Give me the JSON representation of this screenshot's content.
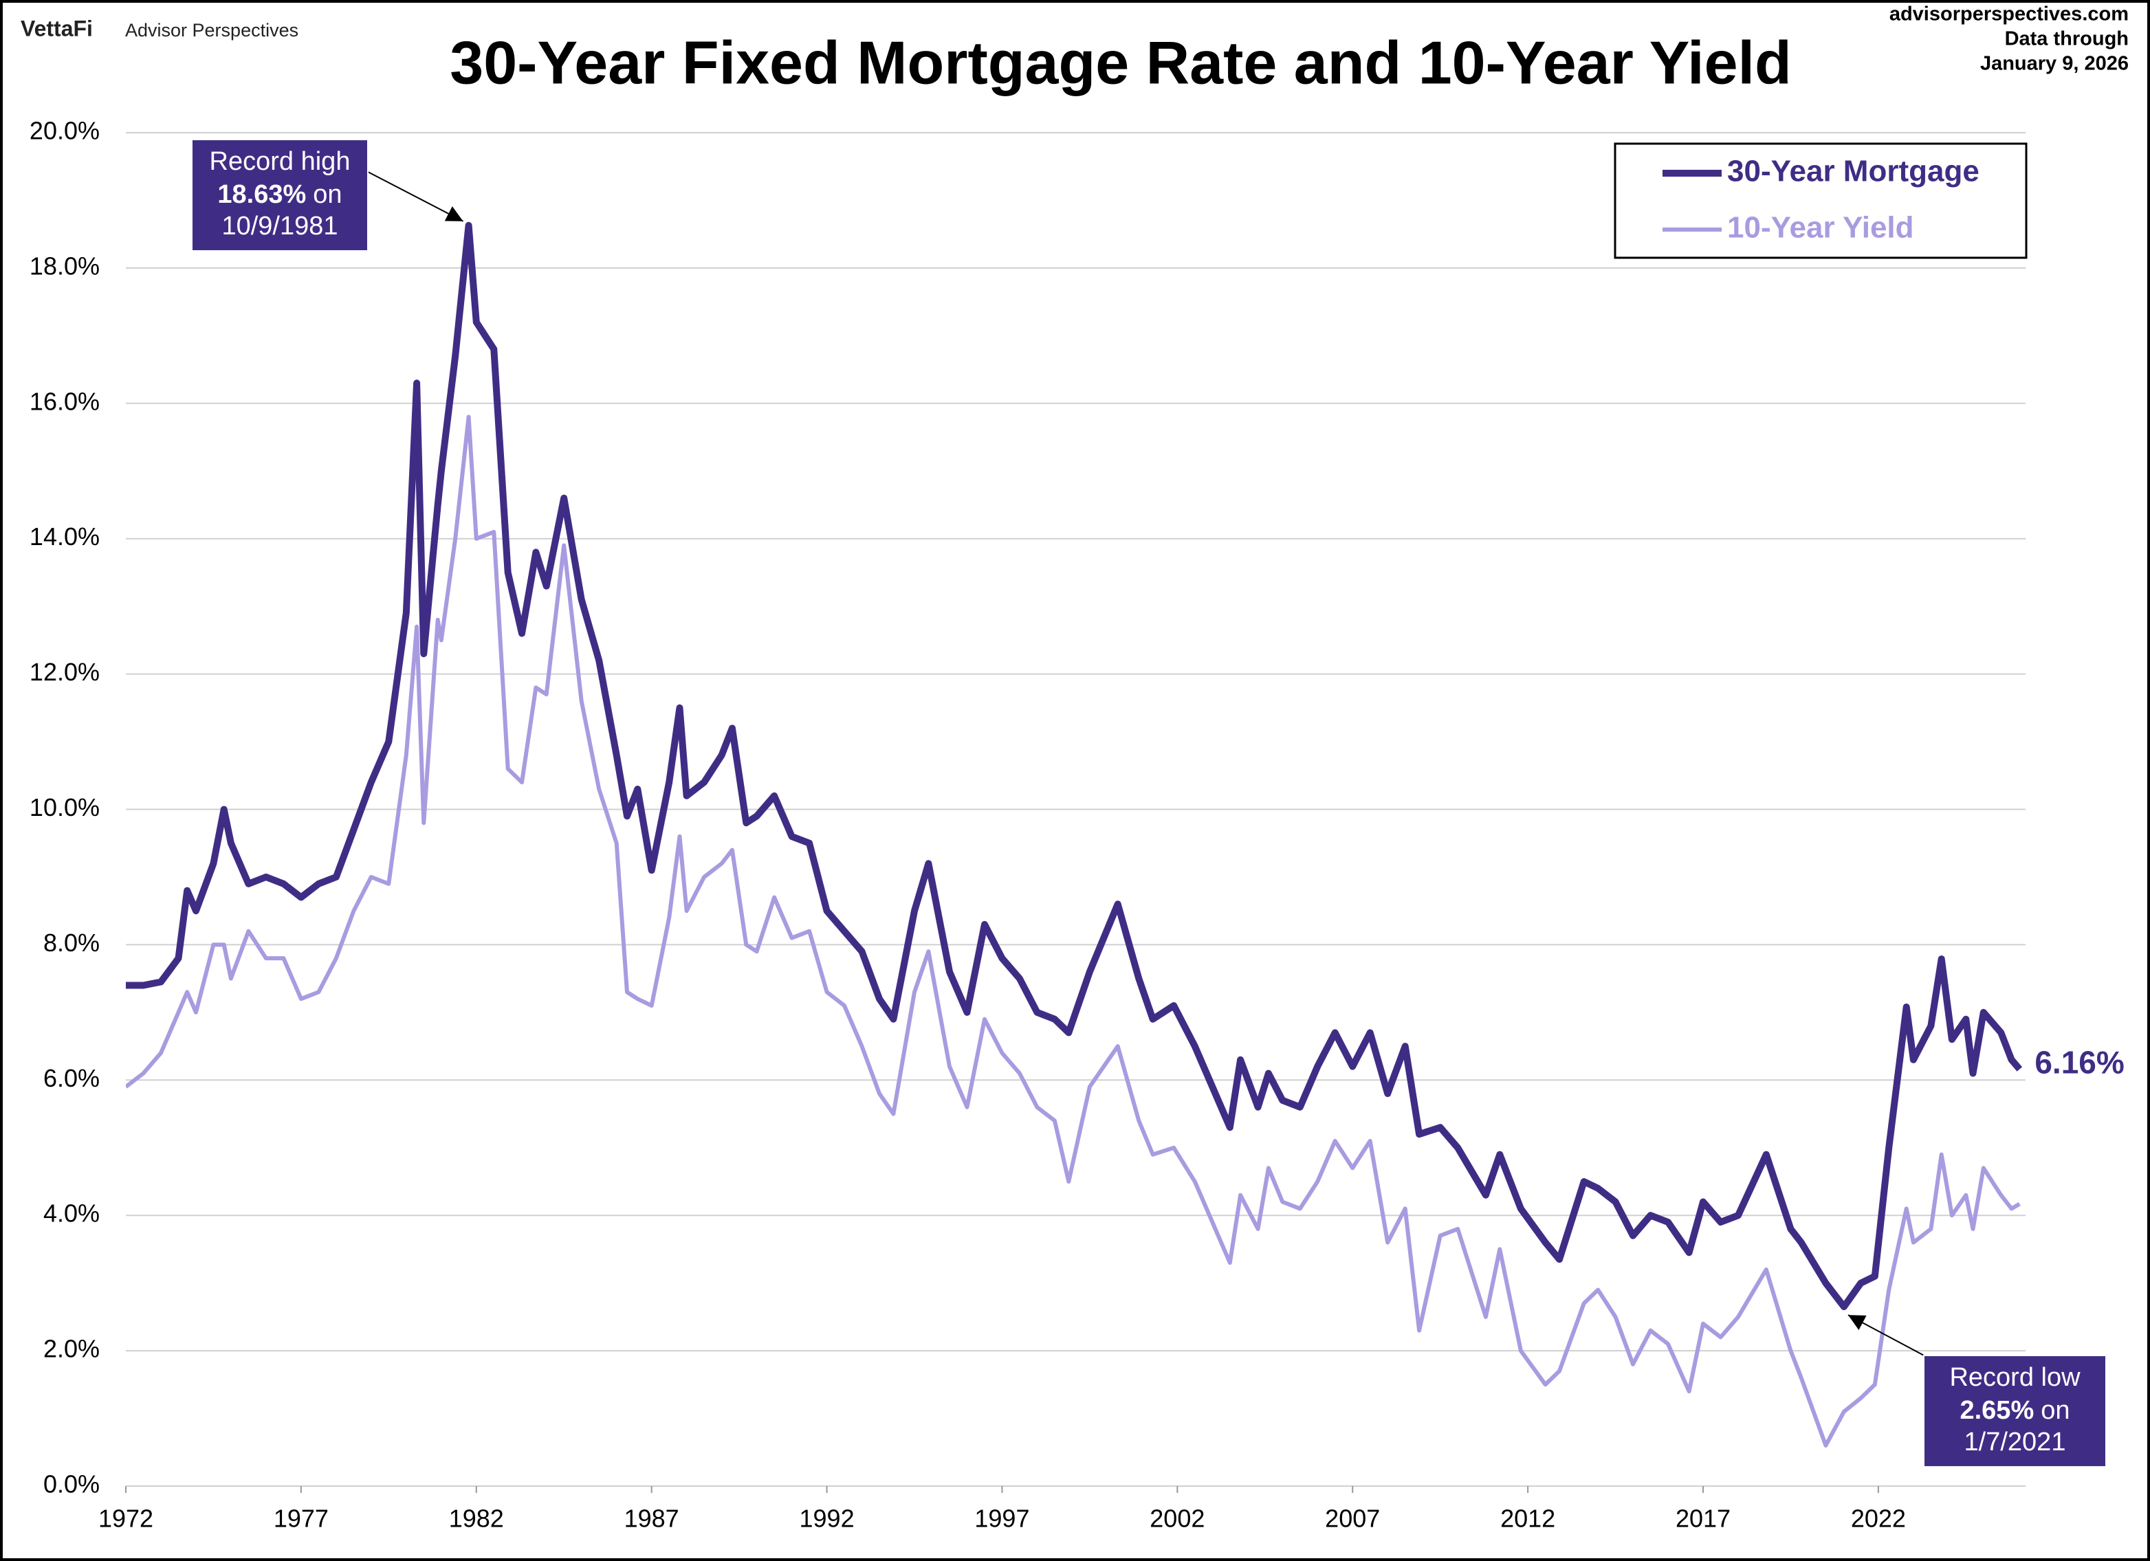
{
  "header": {
    "brand": "VettaFi",
    "publisher": "Advisor Perspectives",
    "site": "advisorperspectives.com",
    "note_line1": "Data through",
    "note_line2": "January 9, 2026"
  },
  "chart_data": {
    "type": "line",
    "title": "30-Year Fixed Mortgage Rate and 10-Year Yield",
    "x": [
      1972.0,
      1972.5,
      1973.0,
      1973.5,
      1973.75,
      1974.0,
      1974.5,
      1974.8,
      1975.0,
      1975.5,
      1976.0,
      1976.5,
      1977.0,
      1977.5,
      1978.0,
      1978.5,
      1979.0,
      1979.5,
      1980.0,
      1980.3,
      1980.5,
      1980.9,
      1981.0,
      1981.4,
      1981.78,
      1982.0,
      1982.5,
      1982.9,
      1983.3,
      1983.7,
      1984.0,
      1984.5,
      1985.0,
      1985.5,
      1986.0,
      1986.3,
      1986.6,
      1987.0,
      1987.5,
      1987.8,
      1988.0,
      1988.5,
      1989.0,
      1989.3,
      1989.7,
      1990.0,
      1990.5,
      1991.0,
      1991.5,
      1992.0,
      1992.5,
      1993.0,
      1993.5,
      1993.9,
      1994.5,
      1994.9,
      1995.5,
      1996.0,
      1996.5,
      1997.0,
      1997.5,
      1998.0,
      1998.5,
      1998.9,
      1999.5,
      2000.3,
      2000.9,
      2001.3,
      2001.9,
      2002.5,
      2003.0,
      2003.5,
      2003.8,
      2004.3,
      2004.6,
      2005.0,
      2005.5,
      2006.0,
      2006.5,
      2007.0,
      2007.5,
      2008.0,
      2008.5,
      2008.9,
      2009.5,
      2010.0,
      2010.8,
      2011.2,
      2011.8,
      2012.5,
      2012.9,
      2013.6,
      2014.0,
      2014.5,
      2015.0,
      2015.5,
      2016.0,
      2016.6,
      2017.0,
      2017.5,
      2018.0,
      2018.8,
      2019.5,
      2019.8,
      2020.5,
      2021.02,
      2021.5,
      2021.9,
      2022.3,
      2022.8,
      2023.0,
      2023.5,
      2023.8,
      2024.1,
      2024.5,
      2024.7,
      2025.0,
      2025.5,
      2025.8,
      2026.03
    ],
    "series": [
      {
        "name": "30-Year Mortgage",
        "color": "#3f2d85",
        "width": 10,
        "end_label": "6.16%",
        "values": [
          7.4,
          7.4,
          7.45,
          7.8,
          8.8,
          8.5,
          9.2,
          10.0,
          9.5,
          8.9,
          9.0,
          8.9,
          8.7,
          8.9,
          9.0,
          9.7,
          10.4,
          11.0,
          12.9,
          16.3,
          12.3,
          14.5,
          15.0,
          16.7,
          18.63,
          17.2,
          16.8,
          13.5,
          12.6,
          13.8,
          13.3,
          14.6,
          13.1,
          12.2,
          10.8,
          9.9,
          10.3,
          9.1,
          10.4,
          11.5,
          10.2,
          10.4,
          10.8,
          11.2,
          9.8,
          9.9,
          10.2,
          9.6,
          9.5,
          8.5,
          8.2,
          7.9,
          7.2,
          6.9,
          8.5,
          9.2,
          7.6,
          7.0,
          8.3,
          7.8,
          7.5,
          7.0,
          6.9,
          6.7,
          7.6,
          8.6,
          7.5,
          6.9,
          7.1,
          6.5,
          5.9,
          5.3,
          6.3,
          5.6,
          6.1,
          5.7,
          5.6,
          6.2,
          6.7,
          6.2,
          6.7,
          5.8,
          6.5,
          5.2,
          5.3,
          5.0,
          4.3,
          4.9,
          4.1,
          3.6,
          3.35,
          4.5,
          4.4,
          4.2,
          3.7,
          4.0,
          3.9,
          3.45,
          4.2,
          3.9,
          4.0,
          4.9,
          3.8,
          3.6,
          3.0,
          2.65,
          3.0,
          3.1,
          5.0,
          7.08,
          6.3,
          6.8,
          7.79,
          6.6,
          6.9,
          6.1,
          7.0,
          6.7,
          6.3,
          6.16
        ]
      },
      {
        "name": "10-Year Yield",
        "color": "#a99be0",
        "width": 6,
        "values": [
          5.9,
          6.1,
          6.4,
          7.0,
          7.3,
          7.0,
          8.0,
          8.0,
          7.5,
          8.2,
          7.8,
          7.8,
          7.2,
          7.3,
          7.8,
          8.5,
          9.0,
          8.9,
          10.8,
          12.7,
          9.8,
          12.8,
          12.5,
          14.0,
          15.8,
          14.0,
          14.1,
          10.6,
          10.4,
          11.8,
          11.7,
          13.9,
          11.6,
          10.3,
          9.5,
          7.3,
          7.2,
          7.1,
          8.4,
          9.6,
          8.5,
          9.0,
          9.2,
          9.4,
          8.0,
          7.9,
          8.7,
          8.1,
          8.2,
          7.3,
          7.1,
          6.5,
          5.8,
          5.5,
          7.3,
          7.9,
          6.2,
          5.6,
          6.9,
          6.4,
          6.1,
          5.6,
          5.4,
          4.5,
          5.9,
          6.5,
          5.4,
          4.9,
          5.0,
          4.5,
          3.9,
          3.3,
          4.3,
          3.8,
          4.7,
          4.2,
          4.1,
          4.5,
          5.1,
          4.7,
          5.1,
          3.6,
          4.1,
          2.3,
          3.7,
          3.8,
          2.5,
          3.5,
          2.0,
          1.5,
          1.7,
          2.7,
          2.9,
          2.5,
          1.8,
          2.3,
          2.1,
          1.4,
          2.4,
          2.2,
          2.5,
          3.2,
          2.0,
          1.6,
          0.6,
          1.1,
          1.3,
          1.5,
          2.9,
          4.1,
          3.6,
          3.8,
          4.9,
          4.0,
          4.3,
          3.8,
          4.7,
          4.3,
          4.1,
          4.17
        ]
      }
    ],
    "xlim": [
      1972,
      2026.2
    ],
    "xticks": [
      1972,
      1977,
      1982,
      1987,
      1992,
      1997,
      2002,
      2007,
      2012,
      2017,
      2022
    ],
    "ylim": [
      0,
      20
    ],
    "yticks": [
      {
        "value": 0,
        "label": "0.0%"
      },
      {
        "value": 2,
        "label": "2.0%"
      },
      {
        "value": 4,
        "label": "4.0%"
      },
      {
        "value": 6,
        "label": "6.0%"
      },
      {
        "value": 8,
        "label": "8.0%"
      },
      {
        "value": 10,
        "label": "10.0%"
      },
      {
        "value": 12,
        "label": "12.0%"
      },
      {
        "value": 14,
        "label": "14.0%"
      },
      {
        "value": 16,
        "label": "16.0%"
      },
      {
        "value": 18,
        "label": "18.0%"
      },
      {
        "value": 20,
        "label": "20.0%"
      }
    ],
    "grid": true,
    "legend": "upper right",
    "annotations": [
      {
        "line1": "Record high",
        "value": "18.63%",
        "suffix": "on",
        "date": "10/9/1981",
        "color": "#3f2d85"
      },
      {
        "line1": "Record low",
        "value": "2.65%",
        "suffix": "on",
        "date": "1/7/2021",
        "color": "#3f2d85"
      }
    ]
  }
}
